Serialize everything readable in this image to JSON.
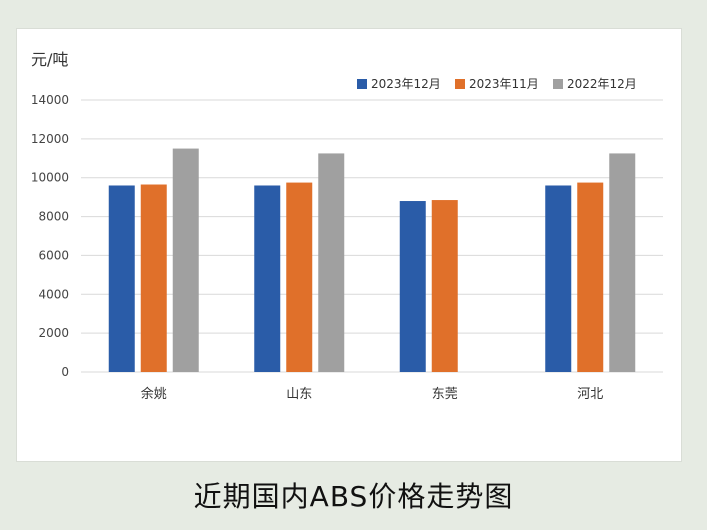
{
  "chart_data": {
    "type": "bar",
    "ylabel": "元/吨",
    "categories": [
      "余姚",
      "山东",
      "东莞",
      "河北"
    ],
    "series": [
      {
        "name": "2023年12月",
        "color": "#2a5ca8",
        "values": [
          9600,
          9600,
          8800,
          9600
        ]
      },
      {
        "name": "2023年11月",
        "color": "#e0702a",
        "values": [
          9650,
          9750,
          8850,
          9750
        ]
      },
      {
        "name": "2022年12月",
        "color": "#a0a0a0",
        "values": [
          11500,
          11250,
          null,
          11250
        ]
      }
    ],
    "ylim": [
      0,
      14000
    ],
    "yticks": [
      0,
      2000,
      4000,
      6000,
      8000,
      10000,
      12000,
      14000
    ],
    "grid": true,
    "legend": "top-right"
  },
  "caption": "近期国内ABS价格走势图"
}
